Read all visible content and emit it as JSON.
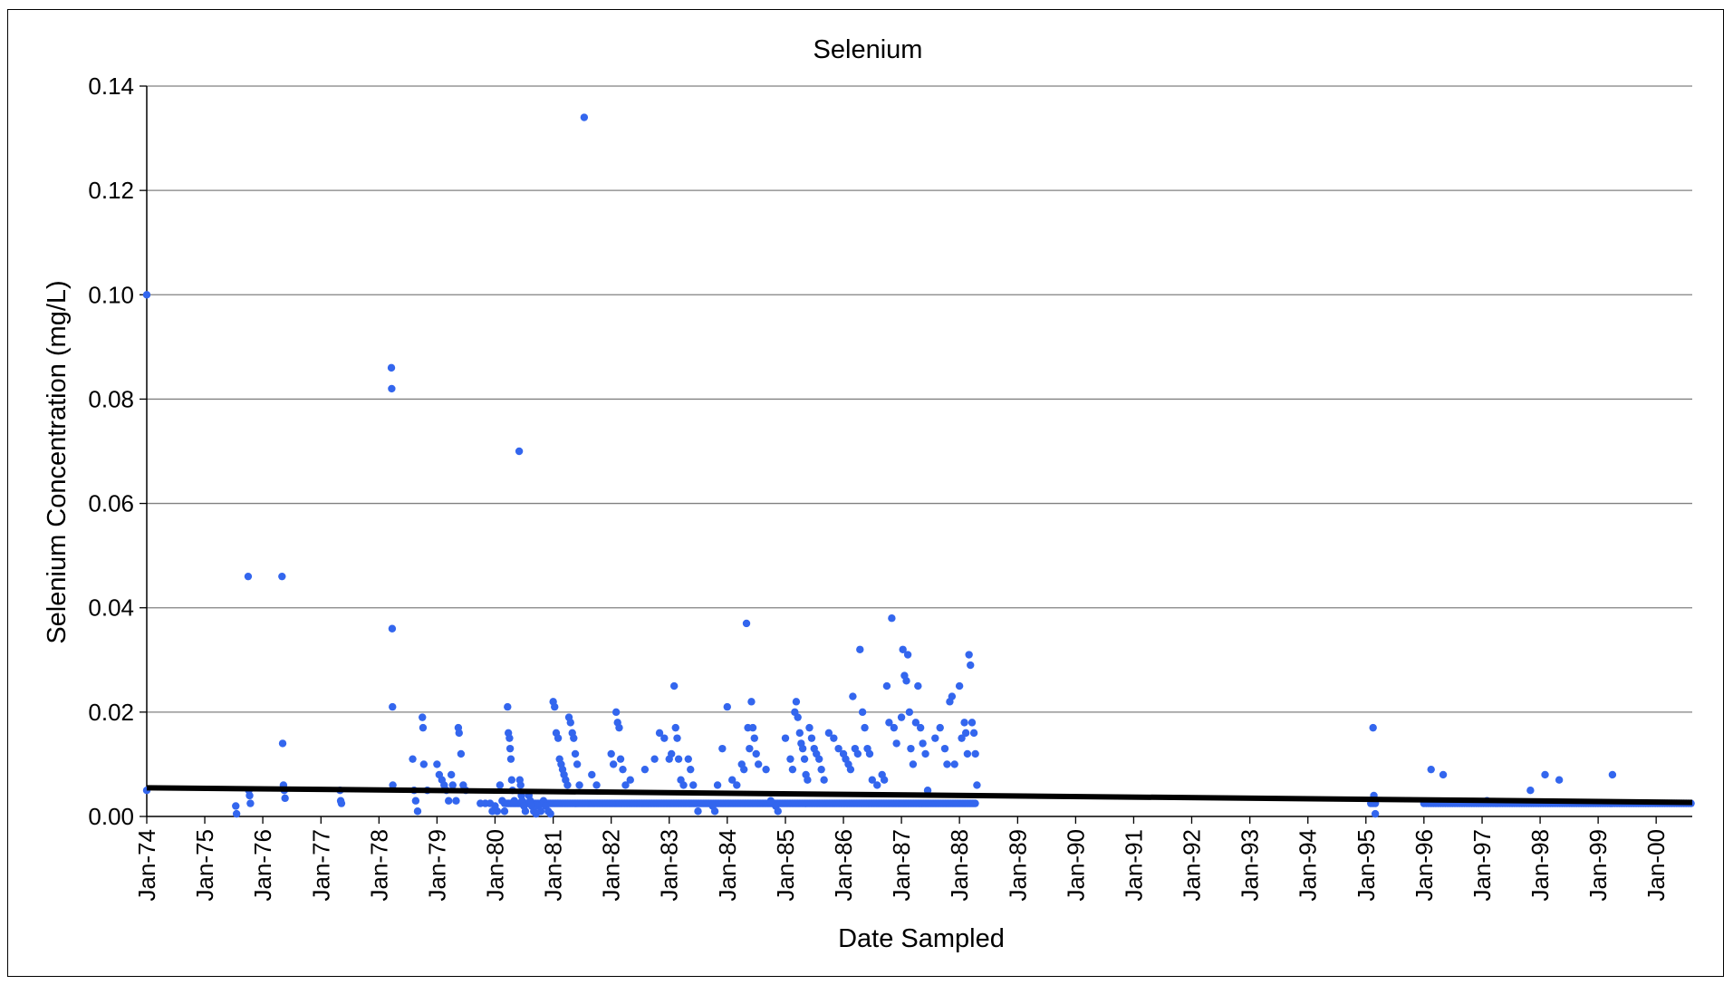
{
  "chart_data": {
    "type": "scatter",
    "title": "Selenium",
    "xlabel": "Date Sampled",
    "ylabel": "Selenium Concentration (mg/L)",
    "x_axis": {
      "type": "date",
      "range": [
        "1974-01-01",
        "2000-08-15"
      ]
    },
    "ylim": [
      0,
      0.14
    ],
    "y_ticks": [
      "0.00",
      "0.02",
      "0.04",
      "0.06",
      "0.08",
      "0.10",
      "0.12",
      "0.14"
    ],
    "x_ticks": [
      "Jan-74",
      "Jan-75",
      "Jan-76",
      "Jan-77",
      "Jan-78",
      "Jan-79",
      "Jan-80",
      "Jan-81",
      "Jan-82",
      "Jan-83",
      "Jan-84",
      "Jan-85",
      "Jan-86",
      "Jan-87",
      "Jan-88",
      "Jan-89",
      "Jan-90",
      "Jan-91",
      "Jan-92",
      "Jan-93",
      "Jan-94",
      "Jan-95",
      "Jan-96",
      "Jan-97",
      "Jan-98",
      "Jan-99",
      "Jan-00"
    ],
    "grid": {
      "horizontal": true,
      "vertical": false
    },
    "legend": "none",
    "colors": {
      "points": "#3366ee",
      "trend": "#000000",
      "grid": "#808080"
    },
    "trendline": {
      "start": {
        "x": "1974-01-01",
        "y": 0.0055
      },
      "end": {
        "x": "2000-08-15",
        "y": 0.0027
      }
    },
    "series": [
      {
        "points": [
          [
            "1974-01-01",
            0.1
          ],
          [
            "1974-01-01",
            0.005
          ],
          [
            "1975-07-15",
            0.002
          ],
          [
            "1975-07-20",
            0.0005
          ],
          [
            "1975-10-01",
            0.046
          ],
          [
            "1975-10-05",
            0.005
          ],
          [
            "1975-10-10",
            0.004
          ],
          [
            "1975-10-15",
            0.0025
          ],
          [
            "1976-05-01",
            0.046
          ],
          [
            "1976-05-05",
            0.014
          ],
          [
            "1976-05-10",
            0.006
          ],
          [
            "1976-05-15",
            0.005
          ],
          [
            "1976-05-20",
            0.0035
          ],
          [
            "1977-05-01",
            0.005
          ],
          [
            "1977-05-05",
            0.003
          ],
          [
            "1977-05-10",
            0.0025
          ],
          [
            "1978-03-20",
            0.086
          ],
          [
            "1978-03-22",
            0.082
          ],
          [
            "1978-03-25",
            0.036
          ],
          [
            "1978-03-27",
            0.021
          ],
          [
            "1978-03-29",
            0.006
          ],
          [
            "1978-08-01",
            0.011
          ],
          [
            "1978-08-10",
            0.005
          ],
          [
            "1978-08-20",
            0.003
          ],
          [
            "1978-09-01",
            0.001
          ],
          [
            "1978-10-01",
            0.019
          ],
          [
            "1978-10-05",
            0.017
          ],
          [
            "1978-10-10",
            0.01
          ],
          [
            "1978-11-01",
            0.005
          ],
          [
            "1979-01-01",
            0.01
          ],
          [
            "1979-01-15",
            0.008
          ],
          [
            "1979-02-01",
            0.007
          ],
          [
            "1979-02-15",
            0.006
          ],
          [
            "1979-03-01",
            0.005
          ],
          [
            "1979-03-15",
            0.003
          ],
          [
            "1979-04-01",
            0.008
          ],
          [
            "1979-04-10",
            0.006
          ],
          [
            "1979-05-01",
            0.003
          ],
          [
            "1979-05-15",
            0.017
          ],
          [
            "1979-05-20",
            0.016
          ],
          [
            "1979-06-01",
            0.012
          ],
          [
            "1979-06-15",
            0.006
          ],
          [
            "1979-07-01",
            0.005
          ],
          [
            "1979-10-01",
            0.0025
          ],
          [
            "1979-11-01",
            0.0025
          ],
          [
            "1979-12-01",
            0.0025
          ],
          [
            "1979-12-15",
            0.001
          ],
          [
            "1980-01-01",
            0.002
          ],
          [
            "1980-01-15",
            0.001
          ],
          [
            "1980-02-01",
            0.006
          ],
          [
            "1980-02-15",
            0.003
          ],
          [
            "1980-03-01",
            0.001
          ],
          [
            "1980-03-20",
            0.021
          ],
          [
            "1980-03-25",
            0.016
          ],
          [
            "1980-04-01",
            0.015
          ],
          [
            "1980-04-05",
            0.013
          ],
          [
            "1980-04-10",
            0.011
          ],
          [
            "1980-04-15",
            0.007
          ],
          [
            "1980-04-20",
            0.005
          ],
          [
            "1980-05-01",
            0.003
          ],
          [
            "1980-06-01",
            0.07
          ],
          [
            "1980-06-05",
            0.007
          ],
          [
            "1980-06-10",
            0.006
          ],
          [
            "1980-06-15",
            0.004
          ],
          [
            "1980-06-20",
            0.003
          ],
          [
            "1980-07-01",
            0.002
          ],
          [
            "1980-07-10",
            0.001
          ],
          [
            "1980-08-01",
            0.004
          ],
          [
            "1980-08-10",
            0.003
          ],
          [
            "1980-08-20",
            0.002
          ],
          [
            "1980-09-01",
            0.001
          ],
          [
            "1980-09-15",
            0.0005
          ],
          [
            "1980-10-01",
            0.002
          ],
          [
            "1980-10-15",
            0.001
          ],
          [
            "1980-11-01",
            0.003
          ],
          [
            "1980-11-15",
            0.002
          ],
          [
            "1980-12-01",
            0.001
          ],
          [
            "1980-12-15",
            0.0005
          ],
          [
            "1981-01-01",
            0.022
          ],
          [
            "1981-01-10",
            0.021
          ],
          [
            "1981-01-20",
            0.016
          ],
          [
            "1981-02-01",
            0.015
          ],
          [
            "1981-02-10",
            0.011
          ],
          [
            "1981-02-20",
            0.01
          ],
          [
            "1981-03-01",
            0.009
          ],
          [
            "1981-03-10",
            0.008
          ],
          [
            "1981-03-20",
            0.007
          ],
          [
            "1981-04-01",
            0.006
          ],
          [
            "1981-04-10",
            0.019
          ],
          [
            "1981-04-20",
            0.018
          ],
          [
            "1981-05-01",
            0.016
          ],
          [
            "1981-05-10",
            0.015
          ],
          [
            "1981-05-20",
            0.012
          ],
          [
            "1981-06-01",
            0.01
          ],
          [
            "1981-06-15",
            0.006
          ],
          [
            "1981-07-15",
            0.134
          ],
          [
            "1981-09-01",
            0.008
          ],
          [
            "1981-10-01",
            0.006
          ],
          [
            "1982-01-01",
            0.012
          ],
          [
            "1982-01-15",
            0.01
          ],
          [
            "1982-02-01",
            0.02
          ],
          [
            "1982-02-10",
            0.018
          ],
          [
            "1982-02-20",
            0.017
          ],
          [
            "1982-03-01",
            0.011
          ],
          [
            "1982-03-15",
            0.009
          ],
          [
            "1982-04-01",
            0.006
          ],
          [
            "1982-05-01",
            0.007
          ],
          [
            "1982-08-01",
            0.009
          ],
          [
            "1982-10-01",
            0.011
          ],
          [
            "1982-11-01",
            0.016
          ],
          [
            "1982-12-01",
            0.015
          ],
          [
            "1983-01-01",
            0.011
          ],
          [
            "1983-01-15",
            0.012
          ],
          [
            "1983-02-01",
            0.025
          ],
          [
            "1983-02-10",
            0.017
          ],
          [
            "1983-02-20",
            0.015
          ],
          [
            "1983-03-01",
            0.011
          ],
          [
            "1983-03-15",
            0.007
          ],
          [
            "1983-04-01",
            0.006
          ],
          [
            "1983-05-01",
            0.011
          ],
          [
            "1983-05-15",
            0.009
          ],
          [
            "1983-06-01",
            0.006
          ],
          [
            "1983-07-01",
            0.001
          ],
          [
            "1983-10-01",
            0.002
          ],
          [
            "1983-10-15",
            0.001
          ],
          [
            "1983-11-01",
            0.006
          ],
          [
            "1983-12-01",
            0.013
          ],
          [
            "1984-01-01",
            0.021
          ],
          [
            "1984-02-01",
            0.007
          ],
          [
            "1984-03-01",
            0.006
          ],
          [
            "1984-04-01",
            0.01
          ],
          [
            "1984-04-15",
            0.009
          ],
          [
            "1984-05-01",
            0.037
          ],
          [
            "1984-05-10",
            0.017
          ],
          [
            "1984-05-20",
            0.013
          ],
          [
            "1984-06-01",
            0.022
          ],
          [
            "1984-06-10",
            0.017
          ],
          [
            "1984-06-20",
            0.015
          ],
          [
            "1984-07-01",
            0.012
          ],
          [
            "1984-07-15",
            0.01
          ],
          [
            "1984-09-01",
            0.009
          ],
          [
            "1984-10-01",
            0.003
          ],
          [
            "1984-11-01",
            0.002
          ],
          [
            "1984-11-15",
            0.001
          ],
          [
            "1985-01-01",
            0.015
          ],
          [
            "1985-02-01",
            0.011
          ],
          [
            "1985-02-15",
            0.009
          ],
          [
            "1985-03-01",
            0.02
          ],
          [
            "1985-03-10",
            0.022
          ],
          [
            "1985-03-20",
            0.019
          ],
          [
            "1985-04-01",
            0.016
          ],
          [
            "1985-04-10",
            0.014
          ],
          [
            "1985-04-20",
            0.013
          ],
          [
            "1985-05-01",
            0.011
          ],
          [
            "1985-05-10",
            0.008
          ],
          [
            "1985-05-20",
            0.007
          ],
          [
            "1985-06-01",
            0.017
          ],
          [
            "1985-06-15",
            0.015
          ],
          [
            "1985-07-01",
            0.013
          ],
          [
            "1985-07-15",
            0.012
          ],
          [
            "1985-08-01",
            0.011
          ],
          [
            "1985-08-15",
            0.009
          ],
          [
            "1985-09-01",
            0.007
          ],
          [
            "1985-10-01",
            0.016
          ],
          [
            "1985-11-01",
            0.015
          ],
          [
            "1985-12-01",
            0.013
          ],
          [
            "1986-01-01",
            0.012
          ],
          [
            "1986-01-15",
            0.011
          ],
          [
            "1986-02-01",
            0.01
          ],
          [
            "1986-02-15",
            0.009
          ],
          [
            "1986-03-01",
            0.023
          ],
          [
            "1986-03-15",
            0.013
          ],
          [
            "1986-04-01",
            0.012
          ],
          [
            "1986-04-15",
            0.032
          ],
          [
            "1986-05-01",
            0.02
          ],
          [
            "1986-05-15",
            0.017
          ],
          [
            "1986-06-01",
            0.013
          ],
          [
            "1986-06-15",
            0.012
          ],
          [
            "1986-07-01",
            0.007
          ],
          [
            "1986-08-01",
            0.006
          ],
          [
            "1986-09-01",
            0.008
          ],
          [
            "1986-09-15",
            0.007
          ],
          [
            "1986-10-01",
            0.025
          ],
          [
            "1986-10-15",
            0.018
          ],
          [
            "1986-11-01",
            0.038
          ],
          [
            "1986-11-15",
            0.017
          ],
          [
            "1986-12-01",
            0.014
          ],
          [
            "1987-01-01",
            0.019
          ],
          [
            "1987-01-10",
            0.032
          ],
          [
            "1987-01-20",
            0.027
          ],
          [
            "1987-02-01",
            0.026
          ],
          [
            "1987-02-10",
            0.031
          ],
          [
            "1987-02-20",
            0.02
          ],
          [
            "1987-03-01",
            0.013
          ],
          [
            "1987-03-15",
            0.01
          ],
          [
            "1987-04-01",
            0.018
          ],
          [
            "1987-04-15",
            0.025
          ],
          [
            "1987-05-01",
            0.017
          ],
          [
            "1987-05-15",
            0.014
          ],
          [
            "1987-06-01",
            0.012
          ],
          [
            "1987-06-15",
            0.005
          ],
          [
            "1987-08-01",
            0.015
          ],
          [
            "1987-09-01",
            0.017
          ],
          [
            "1987-10-01",
            0.013
          ],
          [
            "1987-10-15",
            0.01
          ],
          [
            "1987-11-01",
            0.022
          ],
          [
            "1987-11-15",
            0.023
          ],
          [
            "1987-12-01",
            0.01
          ],
          [
            "1988-01-01",
            0.025
          ],
          [
            "1988-01-15",
            0.015
          ],
          [
            "1988-02-01",
            0.018
          ],
          [
            "1988-02-10",
            0.016
          ],
          [
            "1988-02-20",
            0.012
          ],
          [
            "1988-03-01",
            0.031
          ],
          [
            "1988-03-10",
            0.029
          ],
          [
            "1988-03-20",
            0.018
          ],
          [
            "1988-04-01",
            0.016
          ],
          [
            "1988-04-10",
            0.012
          ],
          [
            "1988-04-20",
            0.006
          ],
          [
            "1995-02-15",
            0.017
          ],
          [
            "1995-02-20",
            0.004
          ],
          [
            "1995-02-25",
            0.003
          ],
          [
            "1995-03-01",
            0.0005
          ],
          [
            "1996-02-15",
            0.009
          ],
          [
            "1996-05-01",
            0.008
          ],
          [
            "1997-02-01",
            0.003
          ],
          [
            "1997-11-01",
            0.005
          ],
          [
            "1998-02-01",
            0.008
          ],
          [
            "1998-05-01",
            0.007
          ],
          [
            "1999-04-01",
            0.008
          ]
        ],
        "baseline_runs": [
          {
            "value": 0.0025,
            "from": "1980-03-01",
            "to": "1988-04-15",
            "step_days": 9
          },
          {
            "value": 0.0025,
            "from": "1995-02-01",
            "to": "1995-03-01",
            "step_days": 14
          },
          {
            "value": 0.0025,
            "from": "1996-01-01",
            "to": "2000-08-15",
            "step_days": 15
          }
        ]
      }
    ]
  }
}
